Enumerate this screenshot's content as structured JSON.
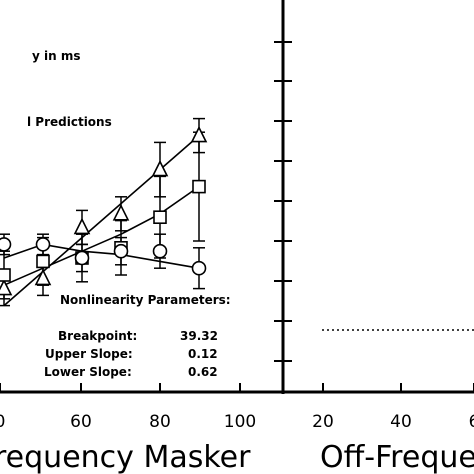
{
  "chart_data": [
    {
      "type": "line",
      "title": "",
      "xlabel": "requency Masker",
      "ylabel": "",
      "x_ticks": [
        "0",
        "60",
        "80",
        "100"
      ],
      "annotations": {
        "legend_fragment": "y in ms",
        "predictions_fragment": "l Predictions",
        "params_title": "Nonlinearity Parameters:",
        "params": [
          {
            "label": "Breakpoint:",
            "value": "39.32"
          },
          {
            "label": "Upper Slope:",
            "value": "0.12"
          },
          {
            "label": "Lower Slope:",
            "value": "0.62"
          }
        ]
      },
      "series": [
        {
          "marker": "triangle",
          "x": [
            40,
            50,
            60,
            70,
            80,
            90
          ],
          "y": [
            0.9,
            0.6,
            -0.9,
            -1.3,
            -2.6,
            -3.6
          ],
          "err": [
            0.5,
            0.5,
            0.5,
            0.5,
            0.8,
            0.5
          ]
        },
        {
          "marker": "square",
          "x": [
            40,
            50,
            60,
            70,
            80,
            90
          ],
          "y": [
            0.5,
            0.1,
            0.0,
            -0.3,
            -1.2,
            -2.1
          ],
          "err": [
            0.7,
            0.7,
            0.7,
            0.8,
            1.2,
            1.6
          ]
        },
        {
          "marker": "circle",
          "x": [
            40,
            50,
            60,
            70,
            80,
            90
          ],
          "y": [
            -0.4,
            -0.4,
            0.0,
            -0.2,
            -0.2,
            0.3
          ],
          "err": [
            0.3,
            0.3,
            0.4,
            0.4,
            0.5,
            0.6
          ]
        }
      ],
      "curves": [
        {
          "x": [
            40,
            50,
            60,
            70,
            80,
            90
          ],
          "y": [
            1.4,
            0.4,
            -0.6,
            -1.6,
            -2.6,
            -3.6
          ]
        },
        {
          "x": [
            40,
            50,
            60,
            70,
            80,
            90
          ],
          "y": [
            0.8,
            0.3,
            -0.2,
            -0.7,
            -1.3,
            -2.1
          ]
        },
        {
          "x": [
            40,
            50,
            60,
            70,
            80,
            90
          ],
          "y": [
            0.0,
            -0.4,
            -0.2,
            -0.1,
            0.1,
            0.3
          ]
        }
      ]
    },
    {
      "type": "line",
      "title": "",
      "xlabel": "Off-Freque",
      "ylabel": "",
      "x_ticks": [
        "20",
        "40",
        "6"
      ],
      "dotted_line": true
    }
  ]
}
